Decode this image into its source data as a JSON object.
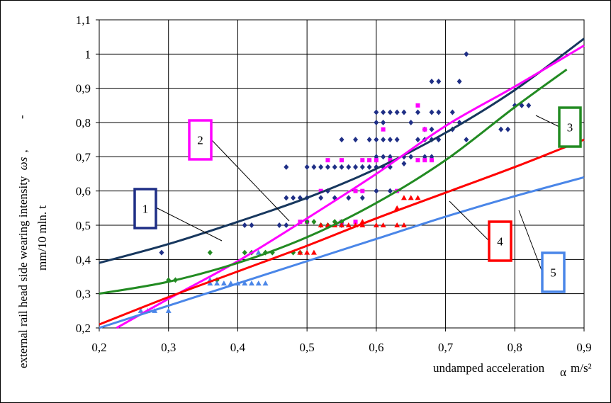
{
  "chart_data": {
    "type": "scatter",
    "xlabel": "undamped acceleration",
    "xlabel_symbol": "α",
    "xlabel_unit": "m/s²",
    "ylabel_line1": "external rail head side wearing intensity",
    "ylabel_symbol": "ωs",
    "ylabel_dash": "-",
    "ylabel_line2": "mm/10 mln. t",
    "xlim": [
      0.2,
      0.9
    ],
    "ylim": [
      0.2,
      1.1
    ],
    "x_ticks": [
      0.2,
      0.3,
      0.4,
      0.5,
      0.6,
      0.7,
      0.8,
      0.9
    ],
    "x_tick_labels": [
      "0,2",
      "0,3",
      "0,4",
      "0,5",
      "0,6",
      "0,7",
      "0,8",
      "0,9"
    ],
    "y_ticks": [
      0.2,
      0.3,
      0.4,
      0.5,
      0.6,
      0.7,
      0.8,
      0.9,
      1.0,
      1.1
    ],
    "y_tick_labels": [
      "0,2",
      "0,3",
      "0,4",
      "0,5",
      "0,6",
      "0,7",
      "0,8",
      "0,9",
      "1",
      "1,1"
    ],
    "grid": true,
    "fit_curves": [
      {
        "label": "1",
        "color": "#17375e",
        "x": [
          0.2,
          0.3,
          0.4,
          0.5,
          0.6,
          0.7,
          0.8,
          0.9
        ],
        "y": [
          0.39,
          0.445,
          0.51,
          0.58,
          0.665,
          0.77,
          0.895,
          1.045
        ]
      },
      {
        "label": "2",
        "color": "#ff00ff",
        "x": [
          0.225,
          0.3,
          0.4,
          0.5,
          0.6,
          0.7,
          0.8,
          0.9
        ],
        "y": [
          0.2,
          0.285,
          0.395,
          0.52,
          0.65,
          0.79,
          0.905,
          1.025
        ]
      },
      {
        "label": "3",
        "color": "#228b22",
        "x": [
          0.2,
          0.3,
          0.4,
          0.5,
          0.6,
          0.7,
          0.8,
          0.875
        ],
        "y": [
          0.3,
          0.335,
          0.39,
          0.465,
          0.565,
          0.69,
          0.845,
          0.955
        ]
      },
      {
        "label": "4",
        "color": "#ff0000",
        "x": [
          0.2,
          0.3,
          0.4,
          0.5,
          0.6,
          0.7,
          0.8,
          0.9
        ],
        "y": [
          0.21,
          0.29,
          0.365,
          0.44,
          0.52,
          0.595,
          0.67,
          0.75
        ]
      },
      {
        "label": "5",
        "color": "#4a86e8",
        "x": [
          0.2,
          0.3,
          0.4,
          0.5,
          0.6,
          0.7,
          0.8,
          0.9
        ],
        "y": [
          0.2,
          0.265,
          0.33,
          0.395,
          0.46,
          0.525,
          0.585,
          0.64
        ]
      }
    ],
    "scatter_series": [
      {
        "color": "#1f2f86",
        "marker": "diamond",
        "points": [
          [
            0.29,
            0.42
          ],
          [
            0.41,
            0.5
          ],
          [
            0.42,
            0.5
          ],
          [
            0.46,
            0.5
          ],
          [
            0.47,
            0.5
          ],
          [
            0.47,
            0.67
          ],
          [
            0.47,
            0.58
          ],
          [
            0.48,
            0.58
          ],
          [
            0.49,
            0.58
          ],
          [
            0.5,
            0.67
          ],
          [
            0.51,
            0.67
          ],
          [
            0.52,
            0.67
          ],
          [
            0.53,
            0.67
          ],
          [
            0.54,
            0.67
          ],
          [
            0.55,
            0.67
          ],
          [
            0.56,
            0.67
          ],
          [
            0.5,
            0.58
          ],
          [
            0.52,
            0.58
          ],
          [
            0.54,
            0.58
          ],
          [
            0.56,
            0.58
          ],
          [
            0.58,
            0.58
          ],
          [
            0.53,
            0.6
          ],
          [
            0.55,
            0.5
          ],
          [
            0.57,
            0.67
          ],
          [
            0.58,
            0.67
          ],
          [
            0.59,
            0.67
          ],
          [
            0.6,
            0.67
          ],
          [
            0.61,
            0.67
          ],
          [
            0.62,
            0.67
          ],
          [
            0.55,
            0.75
          ],
          [
            0.57,
            0.75
          ],
          [
            0.59,
            0.75
          ],
          [
            0.6,
            0.75
          ],
          [
            0.61,
            0.75
          ],
          [
            0.62,
            0.75
          ],
          [
            0.63,
            0.75
          ],
          [
            0.6,
            0.83
          ],
          [
            0.61,
            0.83
          ],
          [
            0.62,
            0.83
          ],
          [
            0.63,
            0.83
          ],
          [
            0.64,
            0.83
          ],
          [
            0.6,
            0.8
          ],
          [
            0.61,
            0.8
          ],
          [
            0.64,
            0.7
          ],
          [
            0.65,
            0.7
          ],
          [
            0.67,
            0.7
          ],
          [
            0.68,
            0.7
          ],
          [
            0.6,
            0.6
          ],
          [
            0.62,
            0.6
          ],
          [
            0.66,
            0.75
          ],
          [
            0.67,
            0.75
          ],
          [
            0.68,
            0.75
          ],
          [
            0.69,
            0.75
          ],
          [
            0.65,
            0.8
          ],
          [
            0.67,
            0.78
          ],
          [
            0.68,
            0.78
          ],
          [
            0.66,
            0.83
          ],
          [
            0.68,
            0.83
          ],
          [
            0.69,
            0.83
          ],
          [
            0.68,
            0.92
          ],
          [
            0.69,
            0.92
          ],
          [
            0.72,
            0.92
          ],
          [
            0.73,
            1.0
          ],
          [
            0.71,
            0.83
          ],
          [
            0.72,
            0.8
          ],
          [
            0.71,
            0.78
          ],
          [
            0.73,
            0.75
          ],
          [
            0.6,
            0.7
          ],
          [
            0.61,
            0.7
          ],
          [
            0.62,
            0.7
          ],
          [
            0.78,
            0.78
          ],
          [
            0.79,
            0.78
          ],
          [
            0.8,
            0.85
          ],
          [
            0.81,
            0.85
          ],
          [
            0.82,
            0.85
          ],
          [
            0.64,
            0.68
          ]
        ]
      },
      {
        "color": "#ff00ff",
        "marker": "square",
        "points": [
          [
            0.49,
            0.51
          ],
          [
            0.5,
            0.51
          ],
          [
            0.52,
            0.6
          ],
          [
            0.53,
            0.69
          ],
          [
            0.55,
            0.69
          ],
          [
            0.57,
            0.6
          ],
          [
            0.58,
            0.69
          ],
          [
            0.59,
            0.69
          ],
          [
            0.6,
            0.69
          ],
          [
            0.58,
            0.6
          ],
          [
            0.61,
            0.78
          ],
          [
            0.62,
            0.69
          ],
          [
            0.66,
            0.69
          ],
          [
            0.67,
            0.69
          ],
          [
            0.68,
            0.69
          ],
          [
            0.66,
            0.85
          ],
          [
            0.67,
            0.78
          ],
          [
            0.63,
            0.6
          ],
          [
            0.55,
            0.51
          ],
          [
            0.57,
            0.51
          ]
        ]
      },
      {
        "color": "#228b22",
        "marker": "diamond",
        "points": [
          [
            0.3,
            0.34
          ],
          [
            0.31,
            0.34
          ],
          [
            0.36,
            0.42
          ],
          [
            0.37,
            0.34
          ],
          [
            0.41,
            0.42
          ],
          [
            0.42,
            0.42
          ],
          [
            0.44,
            0.42
          ],
          [
            0.45,
            0.42
          ],
          [
            0.48,
            0.42
          ],
          [
            0.49,
            0.42
          ],
          [
            0.5,
            0.51
          ],
          [
            0.51,
            0.51
          ],
          [
            0.52,
            0.5
          ],
          [
            0.53,
            0.5
          ],
          [
            0.54,
            0.51
          ],
          [
            0.55,
            0.51
          ]
        ]
      },
      {
        "color": "#ff0000",
        "marker": "triangle",
        "points": [
          [
            0.49,
            0.42
          ],
          [
            0.5,
            0.42
          ],
          [
            0.51,
            0.42
          ],
          [
            0.53,
            0.5
          ],
          [
            0.54,
            0.5
          ],
          [
            0.55,
            0.5
          ],
          [
            0.57,
            0.5
          ],
          [
            0.58,
            0.5
          ],
          [
            0.6,
            0.5
          ],
          [
            0.61,
            0.5
          ],
          [
            0.63,
            0.5
          ],
          [
            0.64,
            0.5
          ],
          [
            0.64,
            0.58
          ],
          [
            0.65,
            0.58
          ],
          [
            0.66,
            0.58
          ],
          [
            0.63,
            0.55
          ],
          [
            0.58,
            0.51
          ],
          [
            0.52,
            0.5
          ],
          [
            0.56,
            0.5
          ]
        ]
      },
      {
        "color": "#4a86e8",
        "marker": "triangle",
        "points": [
          [
            0.26,
            0.25
          ],
          [
            0.27,
            0.25
          ],
          [
            0.28,
            0.25
          ],
          [
            0.3,
            0.25
          ],
          [
            0.36,
            0.33
          ],
          [
            0.37,
            0.33
          ],
          [
            0.39,
            0.33
          ],
          [
            0.4,
            0.33
          ],
          [
            0.41,
            0.33
          ],
          [
            0.42,
            0.33
          ],
          [
            0.43,
            0.33
          ],
          [
            0.44,
            0.33
          ],
          [
            0.38,
            0.33
          ],
          [
            0.36,
            0.34
          ],
          [
            0.43,
            0.42
          ]
        ]
      }
    ],
    "callouts": [
      {
        "label": "1",
        "color": "#1f2f86"
      },
      {
        "label": "2",
        "color": "#ff00ff"
      },
      {
        "label": "3",
        "color": "#228b22"
      },
      {
        "label": "4",
        "color": "#ff0000"
      },
      {
        "label": "5",
        "color": "#4a86e8"
      }
    ]
  }
}
